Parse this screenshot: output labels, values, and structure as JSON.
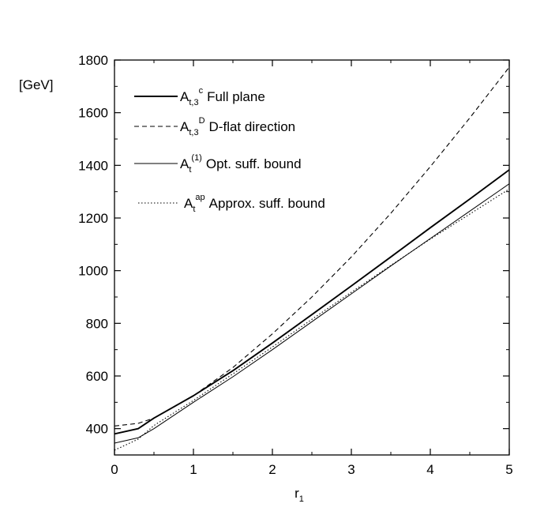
{
  "chart_data": {
    "type": "line",
    "title": "",
    "xlabel": "r",
    "xlabel_subscript": "1",
    "ylabel": "[GeV]",
    "xlim": [
      0,
      5
    ],
    "ylim": [
      300,
      1800
    ],
    "x_ticks": [
      "0",
      "1",
      "2",
      "3",
      "4",
      "5"
    ],
    "y_ticks": [
      "400",
      "600",
      "800",
      "1000",
      "1200",
      "1400",
      "1600",
      "1800"
    ],
    "grid": false,
    "legend_position": "top-left",
    "series": [
      {
        "name": "Full plane",
        "symbol": "A",
        "sub": "t,3",
        "sup": "c",
        "style": "solid-thick",
        "x": [
          0,
          0.3,
          0.5,
          1,
          1.5,
          2,
          2.5,
          3,
          3.5,
          4,
          4.5,
          5
        ],
        "y": [
          380,
          400,
          440,
          525,
          620,
          725,
          833,
          942,
          1052,
          1163,
          1272,
          1383
        ]
      },
      {
        "name": "D-flat direction",
        "symbol": "A",
        "sub": "t,3",
        "sup": "D",
        "style": "dashed",
        "x": [
          0,
          0.3,
          0.5,
          1,
          1.5,
          2,
          2.5,
          3,
          3.5,
          4,
          4.5,
          5
        ],
        "y": [
          410,
          420,
          440,
          525,
          632,
          760,
          900,
          1052,
          1218,
          1395,
          1580,
          1773
        ]
      },
      {
        "name": "Opt. suff. bound",
        "symbol": "A",
        "sub": "t",
        "sup": "(1)",
        "style": "solid-thin",
        "x": [
          0,
          0.3,
          0.5,
          1,
          1.5,
          2,
          2.5,
          3,
          3.5,
          4,
          4.5,
          5
        ],
        "y": [
          345,
          365,
          400,
          500,
          597,
          700,
          806,
          912,
          1018,
          1122,
          1226,
          1330
        ]
      },
      {
        "name": "Approx. suff. bound",
        "symbol": "A",
        "sub": "t",
        "sup": "ap",
        "style": "dotted",
        "x": [
          0,
          0.3,
          0.5,
          1,
          1.5,
          2,
          2.5,
          3,
          3.5,
          4,
          4.5,
          5
        ],
        "y": [
          318,
          360,
          412,
          507,
          608,
          710,
          815,
          918,
          1020,
          1120,
          1215,
          1310
        ]
      }
    ]
  }
}
